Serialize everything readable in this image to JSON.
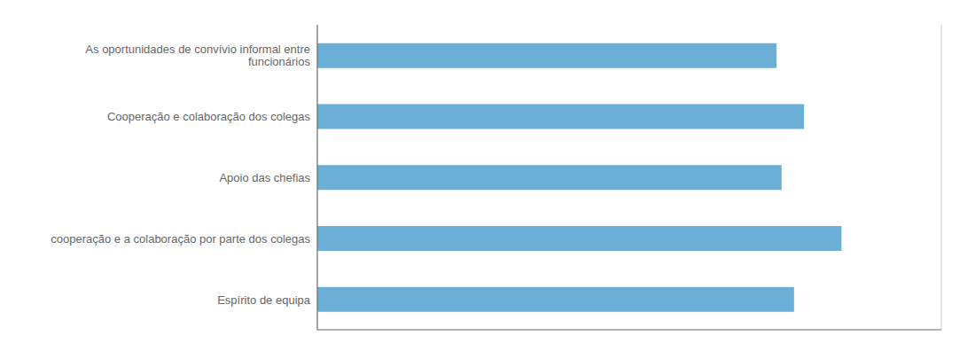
{
  "chart_data": {
    "type": "bar",
    "orientation": "horizontal",
    "categories": [
      "Espírito de equipa",
      "cooperação e a colaboração por parte dos colegas",
      "Apoio das chefias",
      "Cooperação e colaboração dos colegas",
      "As oportunidades de convívio informal entre\nfuncionários"
    ],
    "values": [
      3.82,
      4.2,
      3.72,
      3.9,
      3.68
    ],
    "color": "#6baed6",
    "xlim": [
      0,
      5
    ],
    "xticks": [
      0,
      1,
      2,
      3,
      4,
      5
    ],
    "grid": true,
    "tick_labels": "y"
  }
}
